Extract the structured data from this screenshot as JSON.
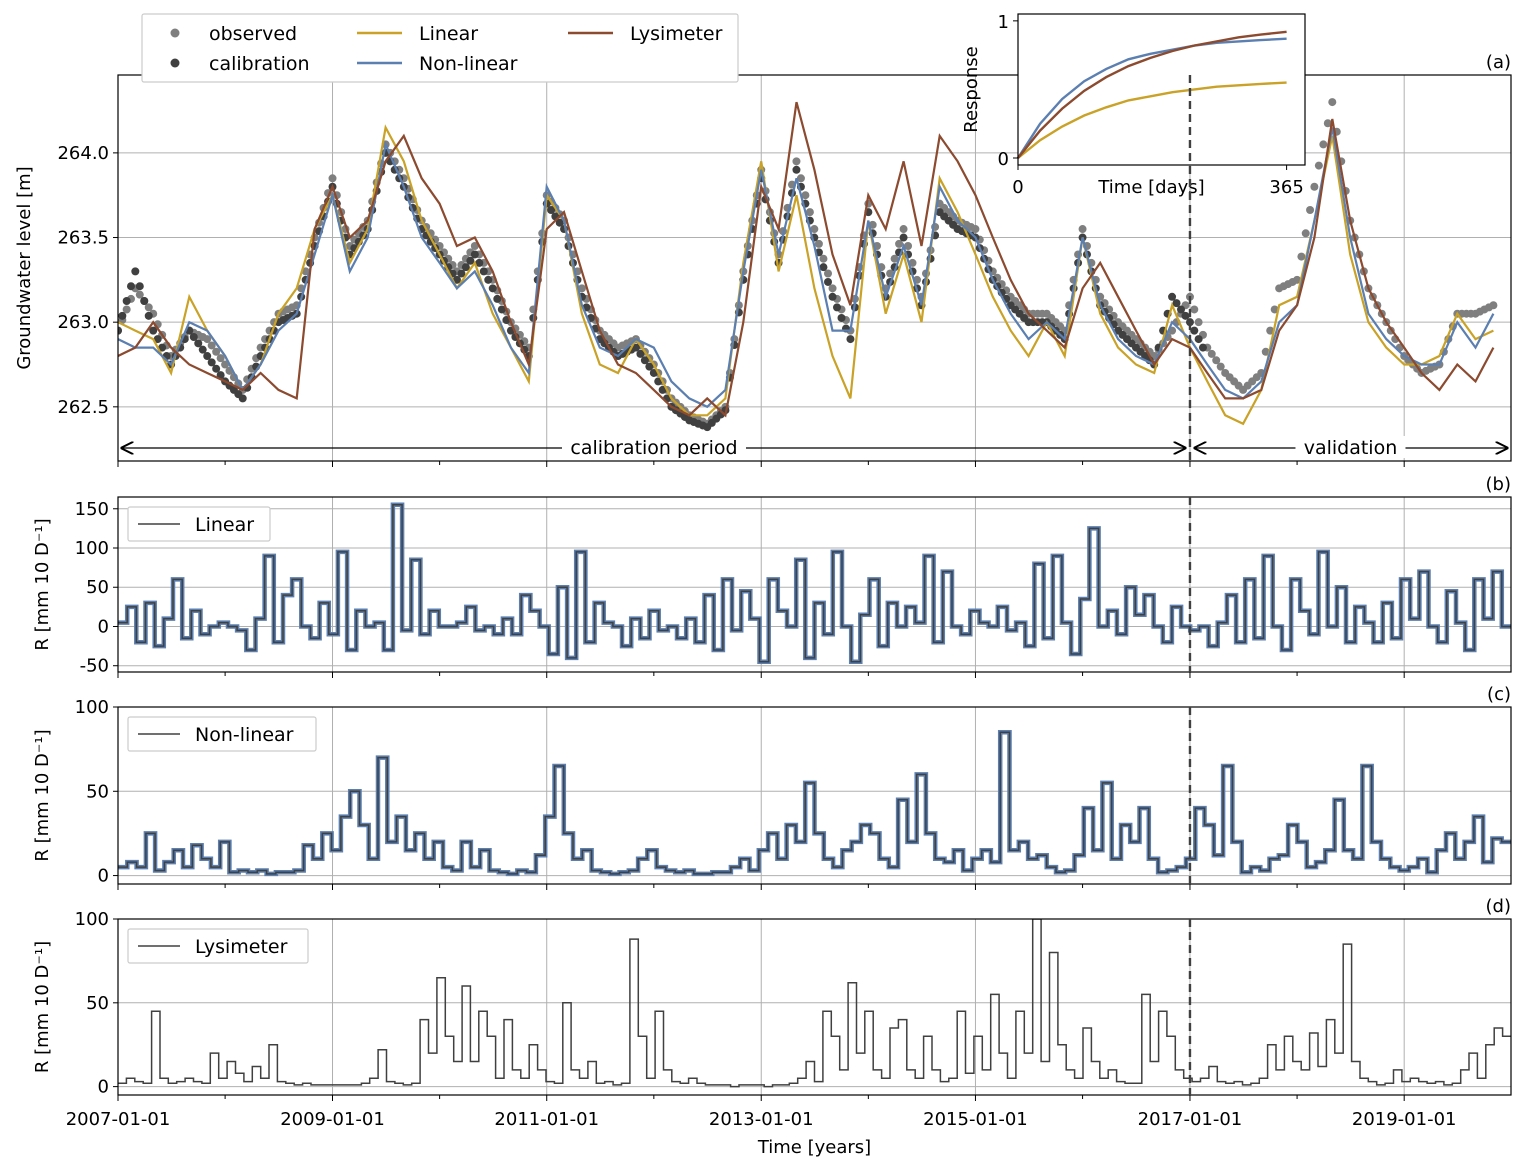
{
  "figure": {
    "xlabel": "Time [years]",
    "x_ticks": [
      "2007-01-01",
      "2009-01-01",
      "2011-01-01",
      "2013-01-01",
      "2015-01-01",
      "2017-01-01",
      "2019-01-01"
    ],
    "split_date": "2017-01-01",
    "calibration_label": "calibration period",
    "validation_label": "validation"
  },
  "chart_data": [
    {
      "panel": "(a)",
      "type": "line",
      "ylabel": "Groundwater level [m]",
      "ylim": [
        262.18,
        264.46
      ],
      "y_ticks": [
        262.5,
        263.0,
        263.5,
        264.0
      ],
      "grid": true,
      "legend": {
        "position": "top-left, above plot",
        "entries": [
          "observed",
          "calibration",
          "Linear",
          "Non-linear",
          "Lysimeter"
        ]
      },
      "dates": [
        "2007-01-01",
        "2007-03-01",
        "2007-05-01",
        "2007-07-01",
        "2007-09-01",
        "2007-11-01",
        "2008-01-01",
        "2008-03-01",
        "2008-05-01",
        "2008-07-01",
        "2008-09-01",
        "2008-11-01",
        "2009-01-01",
        "2009-03-01",
        "2009-05-01",
        "2009-07-01",
        "2009-09-01",
        "2009-11-01",
        "2010-01-01",
        "2010-03-01",
        "2010-05-01",
        "2010-07-01",
        "2010-09-01",
        "2010-11-01",
        "2011-01-01",
        "2011-03-01",
        "2011-05-01",
        "2011-07-01",
        "2011-09-01",
        "2011-11-01",
        "2012-01-01",
        "2012-03-01",
        "2012-05-01",
        "2012-07-01",
        "2012-09-01",
        "2012-11-01",
        "2013-01-01",
        "2013-03-01",
        "2013-05-01",
        "2013-07-01",
        "2013-09-01",
        "2013-11-01",
        "2014-01-01",
        "2014-03-01",
        "2014-05-01",
        "2014-07-01",
        "2014-09-01",
        "2014-11-01",
        "2015-01-01",
        "2015-03-01",
        "2015-05-01",
        "2015-07-01",
        "2015-09-01",
        "2015-11-01",
        "2016-01-01",
        "2016-03-01",
        "2016-05-01",
        "2016-07-01",
        "2016-09-01",
        "2016-11-01",
        "2017-01-01",
        "2017-03-01",
        "2017-05-01",
        "2017-07-01",
        "2017-09-01",
        "2017-11-01",
        "2018-01-01",
        "2018-03-01",
        "2018-05-01",
        "2018-07-01",
        "2018-09-01",
        "2018-11-01",
        "2019-01-01",
        "2019-03-01",
        "2019-05-01",
        "2019-07-01",
        "2019-09-01",
        "2019-11-01"
      ],
      "series": [
        {
          "name": "observed",
          "style": "dots",
          "color": "#7f7f7f",
          "values": [
            262.95,
            263.2,
            263.05,
            262.8,
            262.95,
            262.9,
            262.75,
            262.6,
            262.85,
            263.05,
            263.1,
            263.5,
            263.85,
            263.45,
            263.6,
            264.05,
            263.85,
            263.6,
            263.45,
            263.3,
            263.45,
            263.25,
            263.0,
            262.85,
            263.75,
            263.6,
            263.2,
            262.95,
            262.85,
            262.9,
            262.75,
            262.55,
            262.45,
            262.4,
            262.5,
            263.3,
            263.9,
            263.4,
            263.95,
            263.55,
            263.2,
            262.95,
            263.7,
            263.2,
            263.55,
            263.15,
            263.7,
            263.6,
            263.55,
            263.3,
            263.15,
            263.05,
            263.05,
            262.95,
            263.55,
            263.15,
            263.0,
            262.9,
            262.8,
            262.95,
            263.15,
            262.85,
            262.7,
            262.6,
            262.7,
            263.2,
            263.25,
            263.8,
            264.3,
            263.6,
            263.2,
            263.0,
            262.8,
            262.7,
            262.75,
            263.05,
            263.05,
            263.1
          ]
        },
        {
          "name": "calibration",
          "style": "dots",
          "color": "#404040",
          "values": [
            262.95,
            263.3,
            262.95,
            262.75,
            262.95,
            262.8,
            262.65,
            262.55,
            262.8,
            263.0,
            263.05,
            263.45,
            263.8,
            263.4,
            263.55,
            264.0,
            263.8,
            263.55,
            263.4,
            263.25,
            263.4,
            263.2,
            262.95,
            262.8,
            263.7,
            263.55,
            263.15,
            262.9,
            262.8,
            262.85,
            262.7,
            262.5,
            262.42,
            262.38,
            262.48,
            263.25,
            263.85,
            263.35,
            263.9,
            263.5,
            263.15,
            262.9,
            263.65,
            263.15,
            263.5,
            263.1,
            263.65,
            263.55,
            263.5,
            263.25,
            263.1,
            263.0,
            263.0,
            262.9,
            263.5,
            263.1,
            262.95,
            262.85,
            262.75,
            263.15,
            263.0,
            262.8,
            262.65,
            262.55,
            262.65,
            263.15,
            263.2,
            263.75,
            264.25,
            263.55,
            263.15,
            262.95,
            262.75,
            262.65,
            262.7,
            263.0,
            263.0,
            263.2
          ]
        },
        {
          "name": "Linear",
          "style": "line",
          "color": "#c9a227",
          "values": [
            263.0,
            262.95,
            262.9,
            262.7,
            263.15,
            262.95,
            262.8,
            262.6,
            262.75,
            263.05,
            263.2,
            263.55,
            263.75,
            263.35,
            263.55,
            264.15,
            263.95,
            263.6,
            263.4,
            263.2,
            263.35,
            263.05,
            262.85,
            262.65,
            263.75,
            263.6,
            263.05,
            262.75,
            262.7,
            262.9,
            262.75,
            262.55,
            262.45,
            262.45,
            262.55,
            263.35,
            263.95,
            263.3,
            263.75,
            263.2,
            262.8,
            262.55,
            263.6,
            263.05,
            263.4,
            263.0,
            263.85,
            263.65,
            263.4,
            263.15,
            262.95,
            262.8,
            263.0,
            262.8,
            263.5,
            263.05,
            262.85,
            262.75,
            262.7,
            263.1,
            262.85,
            262.65,
            262.45,
            262.4,
            262.6,
            263.1,
            263.15,
            263.6,
            264.1,
            263.4,
            263.0,
            262.85,
            262.75,
            262.75,
            262.8,
            263.05,
            262.9,
            262.95
          ]
        },
        {
          "name": "Non-linear",
          "style": "line",
          "color": "#5b7fb0",
          "values": [
            262.9,
            262.85,
            262.85,
            262.75,
            263.0,
            262.95,
            262.8,
            262.6,
            262.75,
            262.95,
            263.05,
            263.4,
            263.75,
            263.3,
            263.5,
            264.05,
            263.8,
            263.5,
            263.35,
            263.2,
            263.3,
            263.1,
            262.85,
            262.7,
            263.8,
            263.6,
            263.1,
            262.85,
            262.8,
            262.9,
            262.85,
            262.65,
            262.55,
            262.5,
            262.6,
            263.3,
            263.9,
            263.4,
            263.85,
            263.45,
            262.95,
            262.95,
            263.6,
            263.15,
            263.45,
            263.1,
            263.8,
            263.6,
            263.5,
            263.25,
            263.05,
            262.9,
            263.0,
            262.9,
            263.5,
            263.1,
            262.9,
            262.8,
            262.75,
            263.0,
            262.9,
            262.75,
            262.6,
            262.55,
            262.65,
            263.0,
            263.1,
            263.6,
            264.15,
            263.5,
            263.05,
            262.9,
            262.8,
            262.75,
            262.75,
            263.0,
            262.85,
            263.05
          ]
        },
        {
          "name": "Lysimeter",
          "style": "line",
          "color": "#8c4a2f",
          "values": [
            262.8,
            262.85,
            263.0,
            262.85,
            262.75,
            262.7,
            262.65,
            262.6,
            262.7,
            262.6,
            262.55,
            263.55,
            263.8,
            263.5,
            263.6,
            263.95,
            264.1,
            263.85,
            263.7,
            263.45,
            263.5,
            263.3,
            263.0,
            262.75,
            263.55,
            263.65,
            263.3,
            262.95,
            262.75,
            262.7,
            262.6,
            262.5,
            262.45,
            262.55,
            262.45,
            263.0,
            263.8,
            263.55,
            264.3,
            263.9,
            263.4,
            263.1,
            263.75,
            263.55,
            263.95,
            263.45,
            264.1,
            263.95,
            263.75,
            263.5,
            263.25,
            263.05,
            262.95,
            262.85,
            263.2,
            263.35,
            263.15,
            262.95,
            262.75,
            262.9,
            262.85,
            262.7,
            262.55,
            262.55,
            262.6,
            262.95,
            263.1,
            263.5,
            264.2,
            263.6,
            263.2,
            263.0,
            262.85,
            262.7,
            262.6,
            262.75,
            262.65,
            262.85
          ]
        }
      ],
      "inset": {
        "type": "line",
        "xlabel": "Time [days]",
        "ylabel": "Response",
        "x_ticks": [
          "0",
          "365"
        ],
        "y_ticks": [
          "0",
          "1"
        ],
        "x": [
          0,
          30,
          60,
          90,
          120,
          150,
          180,
          210,
          240,
          270,
          300,
          330,
          365
        ],
        "series": [
          {
            "name": "Linear",
            "color": "#c9a227",
            "values": [
              0,
              0.13,
              0.23,
              0.31,
              0.37,
              0.42,
              0.45,
              0.48,
              0.5,
              0.52,
              0.53,
              0.54,
              0.55
            ]
          },
          {
            "name": "Non-linear",
            "color": "#5b7fb0",
            "values": [
              0,
              0.25,
              0.43,
              0.56,
              0.65,
              0.72,
              0.76,
              0.79,
              0.82,
              0.84,
              0.85,
              0.86,
              0.87
            ]
          },
          {
            "name": "Lysimeter",
            "color": "#8c4a2f",
            "values": [
              0,
              0.2,
              0.36,
              0.49,
              0.59,
              0.67,
              0.73,
              0.78,
              0.82,
              0.85,
              0.88,
              0.9,
              0.92
            ]
          }
        ]
      }
    },
    {
      "panel": "(b)",
      "type": "line",
      "legend_label": "Linear",
      "ylabel": "R [mm 10 D⁻¹]",
      "ylim": [
        -58,
        165
      ],
      "y_ticks": [
        -50,
        0,
        50,
        100,
        150
      ],
      "grid": true,
      "values": [
        5,
        25,
        -20,
        30,
        -25,
        10,
        60,
        -15,
        20,
        -10,
        0,
        5,
        0,
        -5,
        -30,
        10,
        90,
        -20,
        40,
        60,
        0,
        -15,
        30,
        -10,
        95,
        -30,
        20,
        0,
        5,
        -30,
        155,
        -5,
        85,
        -10,
        20,
        0,
        0,
        5,
        25,
        -5,
        0,
        -10,
        10,
        -10,
        40,
        20,
        0,
        -35,
        50,
        -40,
        95,
        -20,
        30,
        5,
        0,
        -25,
        10,
        -15,
        20,
        -5,
        0,
        -15,
        10,
        -20,
        40,
        -30,
        60,
        -5,
        45,
        10,
        -45,
        60,
        20,
        0,
        85,
        -40,
        30,
        -10,
        95,
        0,
        -45,
        15,
        60,
        -25,
        30,
        0,
        25,
        5,
        90,
        -20,
        70,
        0,
        -10,
        20,
        5,
        0,
        25,
        -5,
        5,
        -25,
        80,
        -15,
        90,
        5,
        -35,
        35,
        125,
        0,
        20,
        -10,
        50,
        15,
        40,
        0,
        -20,
        25,
        0,
        -5,
        0,
        -25,
        5,
        40,
        -20,
        60,
        -15,
        90,
        0,
        -30,
        60,
        20,
        -10,
        95,
        0,
        50,
        -20,
        25,
        5,
        -20,
        30,
        -15,
        60,
        10,
        70,
        0,
        -20,
        45,
        5,
        -30,
        60,
        10,
        70,
        0
      ],
      "series_color": "#404040",
      "highlight_color": "#5b7fb0"
    },
    {
      "panel": "(c)",
      "type": "line",
      "legend_label": "Non-linear",
      "ylabel": "R [mm 10 D⁻¹]",
      "ylim": [
        -5,
        100
      ],
      "y_ticks": [
        0,
        50,
        100
      ],
      "grid": true,
      "values": [
        5,
        8,
        5,
        25,
        3,
        8,
        15,
        5,
        18,
        10,
        5,
        20,
        2,
        3,
        2,
        3,
        1,
        2,
        2,
        3,
        18,
        10,
        25,
        15,
        35,
        50,
        30,
        10,
        70,
        20,
        35,
        15,
        25,
        10,
        20,
        5,
        3,
        20,
        5,
        15,
        3,
        2,
        1,
        3,
        2,
        12,
        35,
        65,
        25,
        10,
        15,
        3,
        2,
        1,
        2,
        3,
        10,
        15,
        5,
        3,
        2,
        3,
        1,
        1,
        2,
        2,
        5,
        10,
        3,
        15,
        25,
        10,
        30,
        20,
        55,
        25,
        10,
        5,
        15,
        20,
        30,
        25,
        10,
        5,
        45,
        20,
        60,
        25,
        10,
        8,
        15,
        3,
        10,
        15,
        8,
        85,
        15,
        20,
        10,
        12,
        5,
        2,
        3,
        12,
        40,
        15,
        55,
        10,
        30,
        20,
        40,
        10,
        2,
        3,
        5,
        10,
        40,
        30,
        12,
        65,
        20,
        2,
        5,
        3,
        10,
        12,
        30,
        20,
        5,
        8,
        15,
        45,
        15,
        10,
        65,
        20,
        10,
        5,
        3,
        5,
        10,
        2,
        15,
        25,
        10,
        20,
        35,
        8,
        22,
        20
      ]
    },
    {
      "panel": "(d)",
      "type": "line",
      "legend_label": "Lysimeter",
      "ylabel": "R [mm 10 D⁻¹]",
      "ylim": [
        -5,
        100
      ],
      "y_ticks": [
        0,
        50,
        100
      ],
      "grid": true,
      "values": [
        2,
        5,
        3,
        2,
        45,
        5,
        2,
        3,
        5,
        3,
        2,
        20,
        5,
        15,
        8,
        3,
        12,
        5,
        25,
        3,
        2,
        1,
        2,
        1,
        1,
        1,
        1,
        1,
        1,
        2,
        5,
        22,
        3,
        2,
        1,
        2,
        40,
        20,
        65,
        30,
        15,
        60,
        15,
        45,
        30,
        5,
        40,
        10,
        5,
        25,
        10,
        3,
        2,
        50,
        10,
        5,
        15,
        2,
        3,
        1,
        2,
        88,
        30,
        5,
        45,
        10,
        3,
        2,
        5,
        2,
        1,
        1,
        1,
        0,
        1,
        1,
        1,
        0,
        1,
        1,
        2,
        5,
        15,
        3,
        45,
        30,
        10,
        62,
        20,
        45,
        10,
        5,
        35,
        40,
        10,
        5,
        30,
        10,
        3,
        5,
        45,
        8,
        30,
        10,
        55,
        20,
        5,
        45,
        20,
        100,
        15,
        80,
        25,
        10,
        5,
        35,
        15,
        5,
        10,
        3,
        2,
        2,
        55,
        15,
        45,
        30,
        10,
        5,
        3,
        5,
        12,
        3,
        2,
        3,
        1,
        2,
        5,
        25,
        10,
        30,
        15,
        10,
        32,
        12,
        40,
        20,
        85,
        15,
        5,
        3,
        1,
        2,
        10,
        3,
        5,
        3,
        2,
        3,
        1,
        2,
        10,
        20,
        5,
        25,
        35,
        30
      ]
    }
  ]
}
